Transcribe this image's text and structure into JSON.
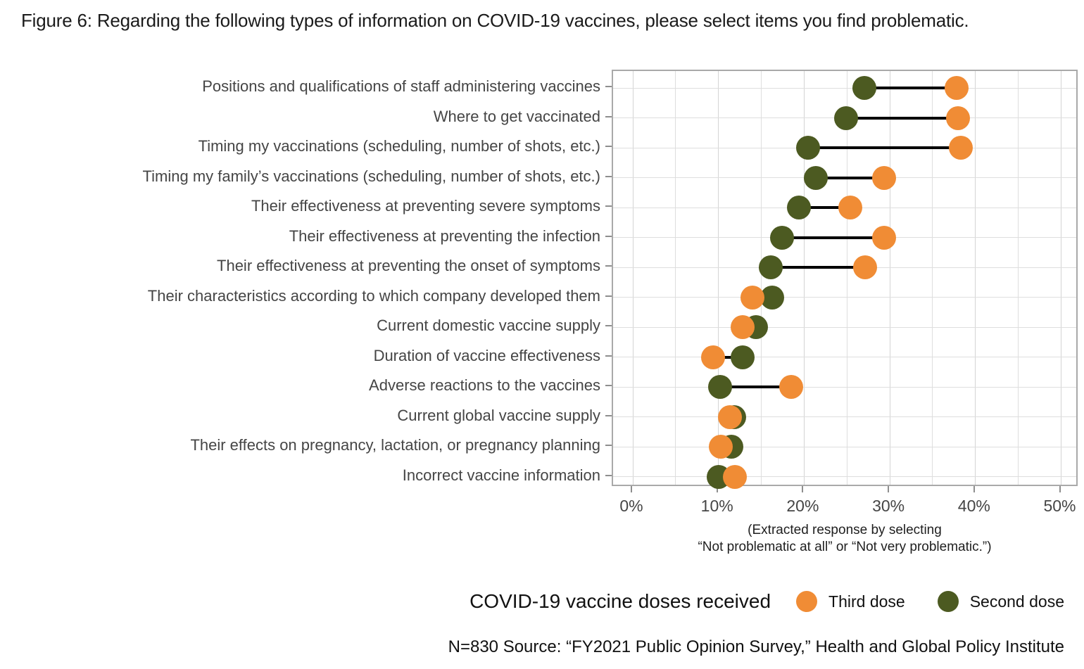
{
  "figure_title": "Figure 6: Regarding the following types of information on COVID-19 vaccines, please select items you find problematic.",
  "chart_data": {
    "type": "dumbbell",
    "title": "Figure 6: Regarding the following types of information on COVID-19 vaccines, please select items you find problematic.",
    "x_axis": {
      "unit": "%",
      "min": 0,
      "max": 50,
      "tick_values": [
        0,
        10,
        20,
        30,
        40,
        50
      ],
      "tick_labels": [
        "0%",
        "10%",
        "20%",
        "30%",
        "40%",
        "50%"
      ],
      "minor_grid_step": 5,
      "grid": "on"
    },
    "caption_line1": "(Extracted response by selecting",
    "caption_line2": "“Not problematic at all” or “Not very problematic.”)",
    "legend": {
      "title": "COVID-19 vaccine doses received",
      "position": "bottom",
      "items": [
        {
          "label": "Third dose",
          "color": "#F08C35"
        },
        {
          "label": "Second dose",
          "color": "#4C5A21"
        }
      ]
    },
    "series": [
      {
        "name": "Third dose",
        "color": "#F08C35",
        "values": [
          37.8,
          38.0,
          38.3,
          29.3,
          25.4,
          29.3,
          27.1,
          14.0,
          12.8,
          9.4,
          18.5,
          11.3,
          10.3,
          11.9
        ]
      },
      {
        "name": "Second dose",
        "color": "#4C5A21",
        "values": [
          27.0,
          24.9,
          20.5,
          21.4,
          19.4,
          17.4,
          16.1,
          16.3,
          14.4,
          12.8,
          10.2,
          11.8,
          11.5,
          10.0
        ]
      }
    ],
    "categories": [
      "Positions and qualifications of staff administering vaccines",
      "Where to get vaccinated",
      "Timing my vaccinations (scheduling, number of shots, etc.)",
      "Timing my family’s vaccinations (scheduling, number of shots, etc.)",
      "Their effectiveness at preventing severe symptoms",
      "Their effectiveness at preventing the infection",
      "Their effectiveness at preventing the onset of symptoms",
      "Their characteristics according to which company developed them",
      "Current domestic vaccine supply",
      "Duration of vaccine effectiveness",
      "Adverse reactions to the vaccines",
      "Current global vaccine supply",
      "Their effects on pregnancy, lactation, or pregnancy planning",
      "Incorrect vaccine information"
    ],
    "source_note": "N=830 Source: “FY2021 Public Opinion Survey,” Health and Global Policy Institute"
  }
}
